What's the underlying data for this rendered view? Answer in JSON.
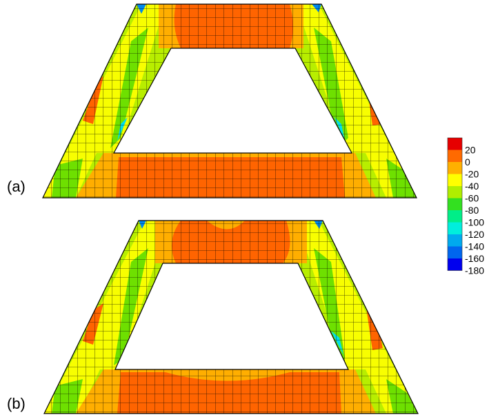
{
  "panels": [
    {
      "label": "(a)"
    },
    {
      "label": "(b)"
    }
  ],
  "legend": {
    "ticks": [
      "20",
      "0",
      "-20",
      "-40",
      "-60",
      "-80",
      "-100",
      "-120",
      "-140",
      "-160",
      "-180"
    ],
    "colors": [
      "#e60000",
      "#ff6a00",
      "#ffb000",
      "#ffff00",
      "#b0ee00",
      "#33e020",
      "#00ee88",
      "#00eedd",
      "#00aaee",
      "#0066ee",
      "#0000ee"
    ]
  },
  "colors": {
    "mesh_line": "#000000",
    "orange": "#ff6400",
    "amber": "#ffae00",
    "yellow": "#ffff00",
    "yellow_green": "#b8ee00",
    "green": "#6ee000",
    "cyan": "#00ddee",
    "blue": "#0088ee"
  }
}
